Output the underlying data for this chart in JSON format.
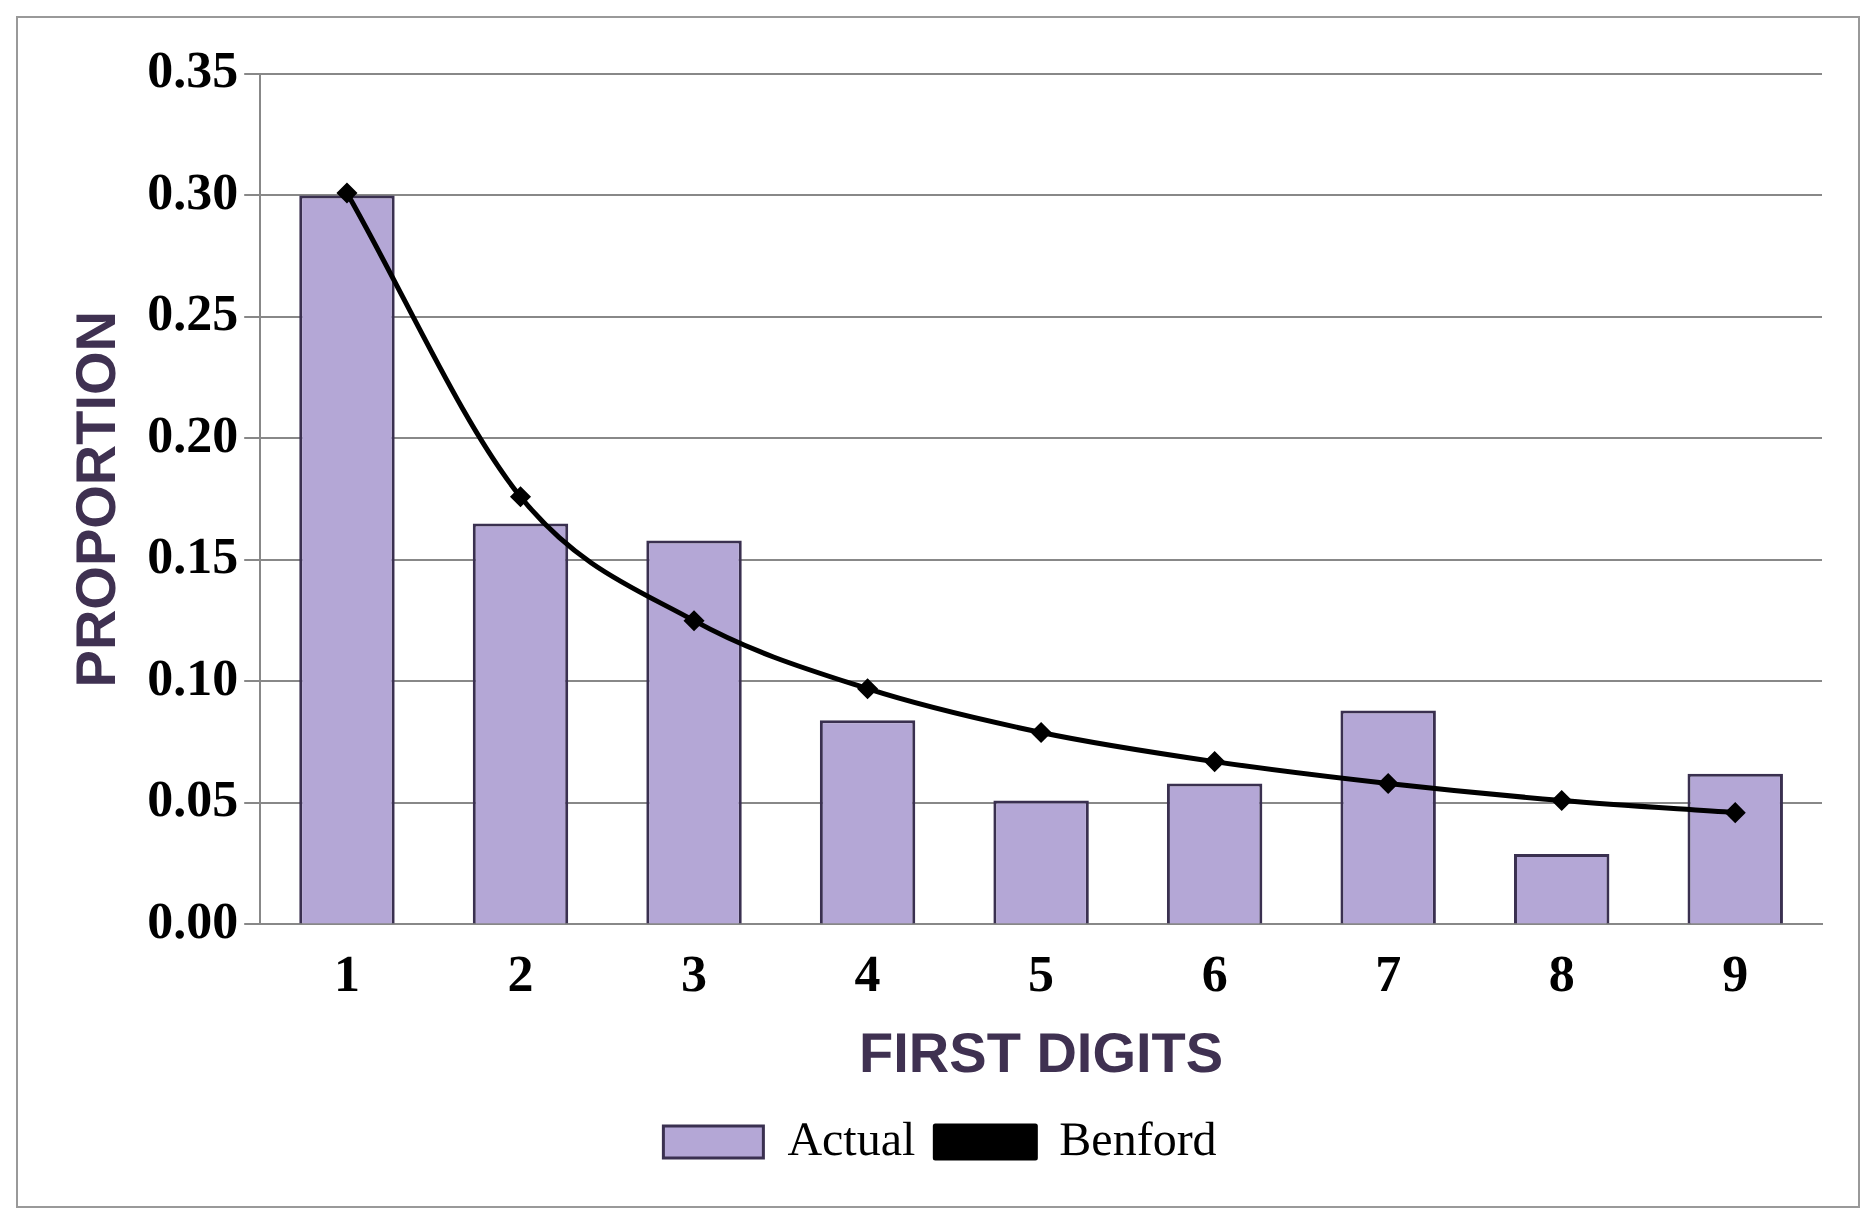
{
  "chart_data": {
    "type": "bar",
    "xlabel": "FIRST DIGITS",
    "ylabel": "PROPORTION",
    "categories": [
      "1",
      "2",
      "3",
      "4",
      "5",
      "6",
      "7",
      "8",
      "9"
    ],
    "series": [
      {
        "name": "Actual",
        "color": "#b4a7d6",
        "values": [
          0.3,
          0.165,
          0.158,
          0.084,
          0.051,
          0.058,
          0.088,
          0.029,
          0.062
        ]
      },
      {
        "name": "Benford",
        "type": "line",
        "color": "#000000",
        "values": [
          0.301,
          0.176,
          0.125,
          0.097,
          0.079,
          0.067,
          0.058,
          0.051,
          0.046
        ]
      }
    ],
    "ylim": [
      0,
      0.35
    ],
    "yticks": [
      {
        "value": 0,
        "label": "0.00"
      },
      {
        "value": 0.05,
        "label": "0.05"
      },
      {
        "value": 0.1,
        "label": "0.10"
      },
      {
        "value": 0.15,
        "label": "0.15"
      },
      {
        "value": 0.2,
        "label": "0.20"
      },
      {
        "value": 0.25,
        "label": "0.25"
      },
      {
        "value": 0.3,
        "label": "0.30"
      },
      {
        "value": 0.35,
        "label": "0.35"
      }
    ],
    "grid": "y",
    "legend": "bottom",
    "marker": "diamond",
    "line_style": "solid"
  }
}
